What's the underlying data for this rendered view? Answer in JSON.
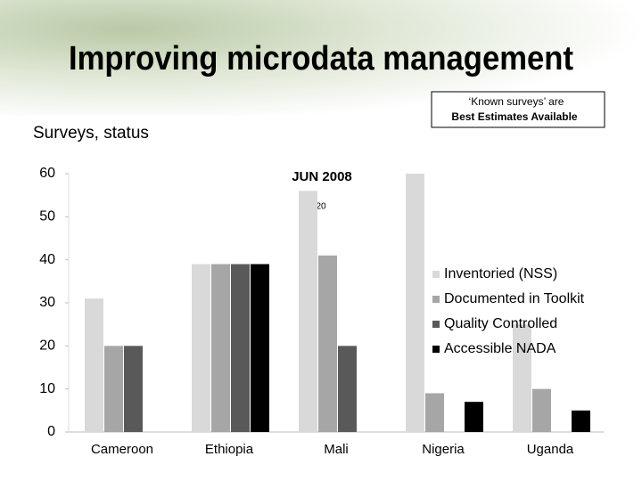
{
  "chart_data": {
    "type": "bar",
    "title": "Improving microdata management",
    "y_label": "Surveys, status",
    "note": [
      "‘Known surveys’ are",
      "Best Estimates Available"
    ],
    "annotations": [
      "JUN 2008",
      "20"
    ],
    "categories": [
      "Cameroon",
      "Ethiopia",
      "Mali",
      "Nigeria",
      "Uganda"
    ],
    "series": [
      {
        "name": "Inventoried (NSS)",
        "color": "#d9d9d9",
        "values": [
          31,
          39,
          56,
          60,
          25
        ]
      },
      {
        "name": "Documented in Toolkit",
        "color": "#a6a6a6",
        "values": [
          20,
          39,
          41,
          9,
          10
        ]
      },
      {
        "name": "Quality Controlled",
        "color": "#595959",
        "values": [
          20,
          39,
          20,
          0,
          0
        ]
      },
      {
        "name": "Accessible NADA",
        "color": "#000000",
        "values": [
          0,
          39,
          0,
          7,
          5
        ]
      }
    ],
    "ylim": [
      0,
      60
    ],
    "yticks": [
      0,
      10,
      20,
      30,
      40,
      50,
      60
    ],
    "grid": false,
    "legend": "right"
  }
}
